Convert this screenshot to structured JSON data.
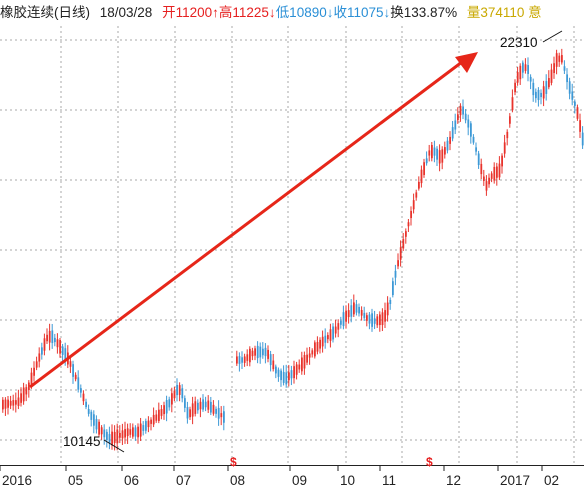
{
  "header": {
    "instrument": "橡胶连续(日线)",
    "date": "18/03/28",
    "open": "开11200↑",
    "high": "高11225↓",
    "low": "低10890↓",
    "close": "收11075↓",
    "turnover": "换133.87%",
    "volume": "量374110",
    "trailing": "意"
  },
  "colors": {
    "up": "#e8332c",
    "down": "#3d99d6",
    "arrow": "#e62619",
    "grid": "#a9a9a9",
    "header_up": "#e62020",
    "header_down": "#2a8fd6",
    "header_volume": "#c9a800",
    "header_text": "#222222",
    "event_marker": "#e62020"
  },
  "chart_data": {
    "type": "candlestick",
    "x_tick_labels": [
      "2016",
      "05",
      "06",
      "07",
      "08",
      "09",
      "10",
      "11",
      "12",
      "2017",
      "02"
    ],
    "annotations": [
      {
        "label": "10145",
        "kind": "period-low"
      },
      {
        "label": "22310",
        "kind": "period-high"
      }
    ],
    "event_markers": [
      {
        "label": "$",
        "near_tick": "08"
      },
      {
        "label": "$",
        "near_tick": "11"
      }
    ],
    "trend_arrow": {
      "from": 10145,
      "to": 22310,
      "direction": "up"
    }
  }
}
